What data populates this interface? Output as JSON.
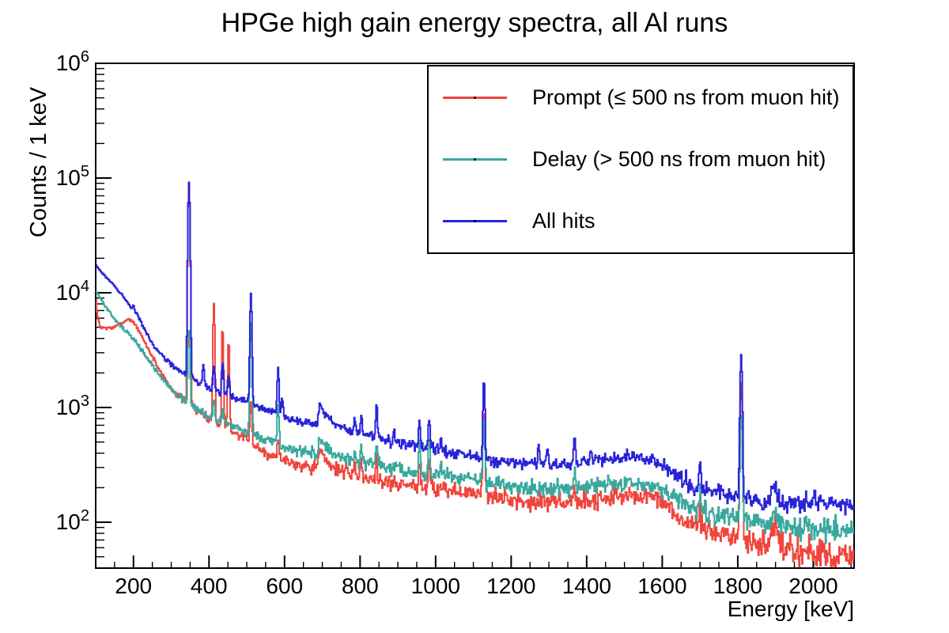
{
  "title": "HPGe high gain energy spectra, all Al runs",
  "axes": {
    "x_label": "Energy [keV]",
    "y_label": "Counts / 1 keV",
    "x_tick_labels": [
      "200",
      "400",
      "600",
      "800",
      "1000",
      "1200",
      "1400",
      "1600",
      "1800",
      "2000"
    ],
    "y_tick_labels": [
      "10^2",
      "10^3",
      "10^4",
      "10^5",
      "10^6"
    ]
  },
  "legend": {
    "entries": [
      {
        "label": "Prompt (≤ 500 ns from muon hit)",
        "color": "#f0453c"
      },
      {
        "label": "Delay (> 500 ns from muon hit)",
        "color": "#3aa89e"
      },
      {
        "label": "All hits",
        "color": "#2823da"
      }
    ]
  },
  "chart_data": {
    "type": "line",
    "title": "HPGe high gain energy spectra, all Al runs",
    "xlabel": "Energy [keV]",
    "ylabel": "Counts / 1 keV",
    "log_y": true,
    "grid": false,
    "legend_position": "top-right",
    "x_range": [
      100,
      2108
    ],
    "y_range": [
      39.8,
      1000000
    ],
    "x_ticks": [
      200,
      400,
      600,
      800,
      1000,
      1200,
      1400,
      1600,
      1800,
      2000
    ],
    "x_minor_step": 50,
    "y_tick_exponents": [
      2,
      3,
      4,
      5,
      6
    ],
    "noise_scale": 1.15,
    "series": [
      {
        "name": "Prompt (≤ 500 ns from muon hit)",
        "key": "prompt",
        "color": "#f0453c",
        "seed": 7,
        "baseline": [
          [
            100,
            9500
          ],
          [
            104,
            6300
          ],
          [
            112,
            5000
          ],
          [
            140,
            4900
          ],
          [
            165,
            5300
          ],
          [
            185,
            5900
          ],
          [
            200,
            5600
          ],
          [
            215,
            4600
          ],
          [
            240,
            3200
          ],
          [
            270,
            2100
          ],
          [
            300,
            1450
          ],
          [
            350,
            1030
          ],
          [
            400,
            800
          ],
          [
            450,
            660
          ],
          [
            480,
            570
          ],
          [
            520,
            465
          ],
          [
            560,
            395
          ],
          [
            620,
            330
          ],
          [
            686,
            300
          ],
          [
            693,
            420
          ],
          [
            706,
            365
          ],
          [
            730,
            298
          ],
          [
            780,
            262
          ],
          [
            840,
            236
          ],
          [
            900,
            216
          ],
          [
            1000,
            196
          ],
          [
            1100,
            178
          ],
          [
            1200,
            157
          ],
          [
            1300,
            150
          ],
          [
            1400,
            152
          ],
          [
            1460,
            166
          ],
          [
            1520,
            171
          ],
          [
            1580,
            161
          ],
          [
            1615,
            136
          ],
          [
            1655,
            101
          ],
          [
            1700,
            89
          ],
          [
            1800,
            73
          ],
          [
            1850,
            65
          ],
          [
            1900,
            59
          ],
          [
            2000,
            53
          ],
          [
            2108,
            48
          ]
        ],
        "peaks": [
          [
            347,
            84000,
            2.2
          ],
          [
            413,
            7400,
            2.0
          ],
          [
            436,
            4300,
            2.0
          ],
          [
            452,
            3200,
            2.0
          ],
          [
            511,
            700,
            2.2
          ],
          [
            583,
            140,
            2.2
          ],
          [
            786,
            70,
            2
          ],
          [
            803,
            90,
            2
          ],
          [
            844,
            130,
            2
          ],
          [
            957,
            140,
            2.2
          ],
          [
            983,
            170,
            2.2
          ],
          [
            1128,
            800,
            2.2
          ],
          [
            1368,
            60,
            2
          ],
          [
            1700,
            60,
            2
          ],
          [
            1809,
            1600,
            2.4
          ],
          [
            1897,
            45,
            6
          ]
        ]
      },
      {
        "name": "Delay (> 500 ns from muon hit)",
        "key": "delay",
        "color": "#3aa89e",
        "seed": 13,
        "baseline": [
          [
            100,
            10500
          ],
          [
            130,
            7200
          ],
          [
            160,
            5400
          ],
          [
            190,
            4300
          ],
          [
            210,
            3600
          ],
          [
            240,
            2600
          ],
          [
            270,
            1900
          ],
          [
            300,
            1450
          ],
          [
            350,
            1050
          ],
          [
            400,
            840
          ],
          [
            450,
            700
          ],
          [
            500,
            610
          ],
          [
            560,
            500
          ],
          [
            620,
            430
          ],
          [
            686,
            390
          ],
          [
            693,
            560
          ],
          [
            706,
            490
          ],
          [
            730,
            395
          ],
          [
            780,
            340
          ],
          [
            840,
            310
          ],
          [
            900,
            285
          ],
          [
            1000,
            255
          ],
          [
            1100,
            235
          ],
          [
            1200,
            205
          ],
          [
            1300,
            197
          ],
          [
            1400,
            200
          ],
          [
            1460,
            215
          ],
          [
            1520,
            222
          ],
          [
            1580,
            212
          ],
          [
            1615,
            182
          ],
          [
            1655,
            146
          ],
          [
            1700,
            126
          ],
          [
            1800,
            106
          ],
          [
            1850,
            99
          ],
          [
            1900,
            93
          ],
          [
            2000,
            89
          ],
          [
            2108,
            83
          ]
        ],
        "peaks": [
          [
            347,
            3500,
            2.2
          ],
          [
            413,
            350,
            2
          ],
          [
            436,
            250,
            2
          ],
          [
            511,
            4900,
            2.2
          ],
          [
            583,
            600,
            2.2
          ],
          [
            786,
            110,
            2
          ],
          [
            803,
            140,
            2
          ],
          [
            844,
            170,
            2
          ],
          [
            898,
            60,
            2
          ],
          [
            957,
            230,
            2.2
          ],
          [
            983,
            260,
            2.2
          ],
          [
            1014,
            80,
            2
          ],
          [
            1128,
            620,
            2.2
          ],
          [
            1368,
            60,
            2
          ],
          [
            1700,
            60,
            2
          ],
          [
            1809,
            800,
            2.4
          ],
          [
            1897,
            30,
            6
          ]
        ]
      },
      {
        "name": "All hits",
        "key": "all",
        "color": "#2823da",
        "seed": 29,
        "baseline": [
          [
            100,
            17500
          ],
          [
            120,
            14500
          ],
          [
            150,
            11500
          ],
          [
            175,
            9000
          ],
          [
            197,
            7200
          ],
          [
            210,
            6500
          ],
          [
            230,
            4700
          ],
          [
            260,
            3250
          ],
          [
            300,
            2350
          ],
          [
            350,
            1800
          ],
          [
            400,
            1500
          ],
          [
            450,
            1280
          ],
          [
            500,
            1120
          ],
          [
            560,
            930
          ],
          [
            620,
            790
          ],
          [
            686,
            700
          ],
          [
            693,
            1060
          ],
          [
            706,
            910
          ],
          [
            730,
            710
          ],
          [
            780,
            610
          ],
          [
            840,
            555
          ],
          [
            900,
            490
          ],
          [
            1000,
            430
          ],
          [
            1100,
            370
          ],
          [
            1150,
            340
          ],
          [
            1200,
            330
          ],
          [
            1300,
            315
          ],
          [
            1400,
            330
          ],
          [
            1460,
            360
          ],
          [
            1520,
            370
          ],
          [
            1580,
            350
          ],
          [
            1615,
            300
          ],
          [
            1655,
            235
          ],
          [
            1700,
            195
          ],
          [
            1800,
            168
          ],
          [
            1850,
            152
          ],
          [
            1900,
            148
          ],
          [
            2000,
            145
          ],
          [
            2108,
            140
          ]
        ],
        "peaks": [
          [
            200,
            800,
            2
          ],
          [
            347,
            90000,
            2.2
          ],
          [
            385,
            800,
            2
          ],
          [
            413,
            900,
            2
          ],
          [
            436,
            1200,
            2
          ],
          [
            452,
            700,
            2
          ],
          [
            511,
            8700,
            2.2
          ],
          [
            583,
            1400,
            2.2
          ],
          [
            594,
            420,
            2
          ],
          [
            786,
            240,
            2
          ],
          [
            803,
            300,
            2
          ],
          [
            844,
            500,
            2
          ],
          [
            890,
            130,
            2
          ],
          [
            957,
            340,
            2.2
          ],
          [
            983,
            380,
            2.2
          ],
          [
            1014,
            150,
            2
          ],
          [
            1128,
            1400,
            2.2
          ],
          [
            1273,
            170,
            2
          ],
          [
            1297,
            120,
            2
          ],
          [
            1368,
            240,
            2
          ],
          [
            1412,
            100,
            2
          ],
          [
            1700,
            150,
            2
          ],
          [
            1809,
            2700,
            2.4
          ],
          [
            1897,
            62,
            6
          ],
          [
            2003,
            55,
            2
          ]
        ]
      }
    ]
  }
}
